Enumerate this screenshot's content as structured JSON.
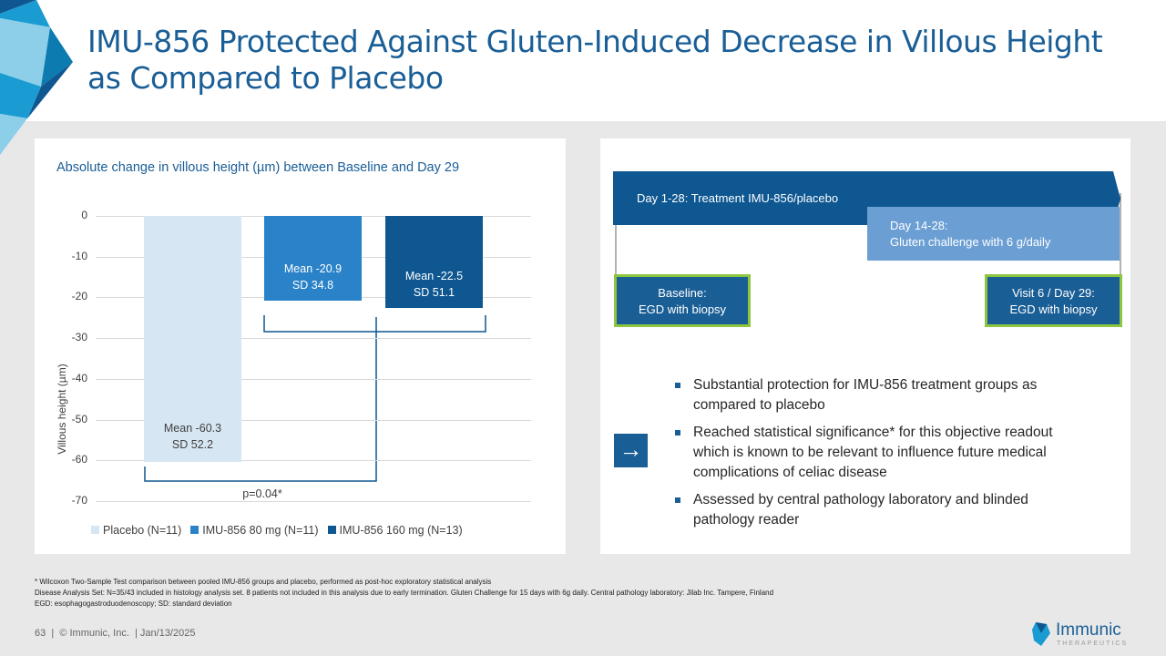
{
  "title": "IMU-856 Protected Against Gluten-Induced Decrease in Villous Height as Compared to Placebo",
  "chart_data": {
    "type": "bar",
    "title": "Absolute change in villous height (µm) between Baseline and Day 29",
    "ylabel": "Villous height (µm)",
    "ylim": [
      -70,
      0
    ],
    "yticks": [
      "0",
      "-10",
      "-20",
      "-30",
      "-40",
      "-50",
      "-60",
      "-70"
    ],
    "categories": [
      "Placebo (N=11)",
      "IMU-856 80 mg (N=11)",
      "IMU-856 160 mg (N=13)"
    ],
    "values": [
      -60.3,
      -20.9,
      -22.5
    ],
    "colors": [
      "#d6e6f3",
      "#2a82c9",
      "#0e5791"
    ],
    "data_labels": [
      [
        "Mean -60.3",
        "SD 52.2"
      ],
      [
        "Mean -20.9",
        "SD 34.8"
      ],
      [
        "Mean -22.5",
        "SD 51.1"
      ]
    ],
    "annotation": "p=0.04*",
    "legend_position": "bottom"
  },
  "timeline": {
    "treatment": "Day 1-28: Treatment IMU-856/placebo",
    "gluten_line1": "Day 14-28:",
    "gluten_line2": "Gluten challenge with 6 g/daily",
    "baseline_line1": "Baseline:",
    "baseline_line2": "EGD with biopsy",
    "visit_line1": "Visit 6 / Day 29:",
    "visit_line2": "EGD with biopsy"
  },
  "bullets": [
    "Substantial protection for IMU-856 treatment groups as compared to placebo",
    "Reached statistical significance* for this objective readout which is known to be relevant to influence future medical complications of celiac disease",
    "Assessed by central pathology laboratory and blinded pathology reader"
  ],
  "footnotes": [
    "* Wilcoxon Two-Sample Test comparison between pooled IMU-856 groups and placebo, performed as post-hoc exploratory statistical analysis",
    "Disease Analysis Set: N=35/43 included in histology analysis set. 8 patients not included in this analysis due to early termination. Gluten Challenge for 15 days with 6g daily. Central pathology laboratory: Jilab Inc. Tampere, Finland",
    "EGD: esophagogastroduodenoscopy; SD: standard deviation"
  ],
  "footer": "63  |  © Immunic, Inc.  | Jan/13/2025",
  "logo": {
    "name": "Immunic",
    "sub": "THERAPEUTICS"
  }
}
